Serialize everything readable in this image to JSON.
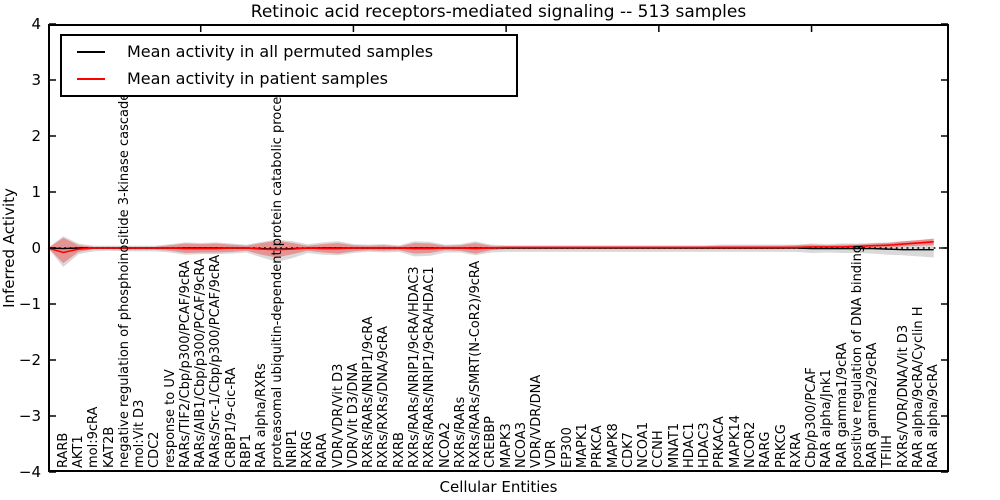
{
  "figure": {
    "title": "Retinoic acid receptors-mediated signaling -- 513 samples",
    "xlabel": "Cellular Entities",
    "ylabel": "Inferred Activity"
  },
  "legend": {
    "entries": [
      {
        "label": "Mean activity in all permuted samples",
        "color": "#000000"
      },
      {
        "label": "Mean activity in patient samples",
        "color": "#ff0000"
      }
    ]
  },
  "chart_data": {
    "type": "line",
    "title": "Retinoic acid receptors-mediated signaling -- 513 samples",
    "xlabel": "Cellular Entities",
    "ylabel": "Inferred Activity",
    "ylim": [
      -4,
      4
    ],
    "yticks": [
      -4,
      -3,
      -2,
      -1,
      0,
      1,
      2,
      3,
      4
    ],
    "xlim": [
      0,
      59
    ],
    "top_xticks": [
      10,
      20,
      30,
      40,
      50
    ],
    "grid": false,
    "zero_line": 0,
    "legend_position": "upper left",
    "colors": {
      "permuted_line": "#000000",
      "patient_line": "#ff0000",
      "permuted_band": "rgba(128,128,128,0.30)",
      "patient_band": "rgba(255,0,0,0.32)"
    },
    "categories": [
      "RARB",
      "AKT1",
      "mol:9cRA",
      "KAT2B",
      "negative regulation of phosphoinositide 3-kinase cascade",
      "mol:Vit D3",
      "CDC2",
      "response to UV",
      "RARs/TIF2/Cbp/p300/PCAF/9cRA",
      "RARs/AIB1/Cbp/p300/PCAF/9cRA",
      "RARs/Src-1/Cbp/p300/PCAF/9cRA",
      "CRBP1/9-cic-RA",
      "RBP1",
      "RAR alpha/RXRs",
      "proteasomal ubiquitin-dependent protein catabolic process",
      "NRIP1",
      "RXRG",
      "RARA",
      "VDR/VDR/Vit D3",
      "VDR/Vit D3/DNA",
      "RXRs/RARs/NRIP1/9cRA",
      "RXRs/RXRs/DNA/9cRA",
      "RXRB",
      "RXRs/RARs/NRIP1/9cRA/HDAC3",
      "RXRs/RARs/NRIP1/9cRA/HDAC1",
      "NCOA2",
      "RXRs/RARs",
      "RXRs/RARs/SMRT(N-CoR2)/9cRA",
      "CREBBP",
      "MAPK3",
      "NCOA3",
      "VDR/VDR/DNA",
      "VDR",
      "EP300",
      "MAPK1",
      "PRKCA",
      "MAPK8",
      "CDK7",
      "NCOA1",
      "CCNH",
      "MNAT1",
      "HDAC1",
      "HDAC3",
      "PRKACA",
      "MAPK14",
      "NCOR2",
      "RARG",
      "PRKCG",
      "RXRA",
      "Cbp/p300/PCAF",
      "RAR alpha/Jnk1",
      "RAR gamma1/9cRA",
      "positive regulation of DNA binding",
      "RAR gamma2/9cRA",
      "TFIIH",
      "RXRs/VDR/DNA/Vit D3",
      "RAR alpha/9cRA/Cyclin H",
      "RAR alpha/9cRA"
    ],
    "series": [
      {
        "name": "Mean activity in all permuted samples",
        "color": "#000000",
        "values": [
          -0.01,
          0,
          0,
          0,
          0,
          0,
          0,
          0,
          0,
          0,
          0,
          0,
          0,
          -0.01,
          -0.02,
          -0.01,
          0,
          0,
          0,
          0,
          0,
          0,
          0,
          0,
          0,
          0,
          0,
          0,
          0,
          0,
          0,
          0,
          0,
          0,
          0,
          0,
          0,
          0,
          0,
          0,
          0,
          0,
          0,
          0,
          0,
          0,
          0,
          0,
          0,
          -0.01,
          -0.01,
          -0.01,
          -0.01,
          -0.01,
          -0.02,
          -0.03,
          -0.03,
          -0.03
        ]
      },
      {
        "name": "Mean activity in patient samples",
        "color": "#ff0000",
        "values": [
          -0.08,
          -0.02,
          0,
          0,
          0,
          0,
          0,
          0,
          -0.01,
          -0.01,
          -0.01,
          0,
          0,
          -0.02,
          -0.03,
          -0.02,
          0,
          -0.01,
          -0.01,
          0,
          0,
          0,
          0,
          -0.01,
          -0.01,
          0,
          0,
          -0.01,
          0,
          0.01,
          0.01,
          0.01,
          0.01,
          0.01,
          0.01,
          0.01,
          0.01,
          0.01,
          0.01,
          0.01,
          0.01,
          0.01,
          0.01,
          0.01,
          0.01,
          0.01,
          0.01,
          0.01,
          0.01,
          0.02,
          0.02,
          0.02,
          0.03,
          0.04,
          0.05,
          0.07,
          0.09,
          0.11
        ]
      }
    ],
    "bands": [
      {
        "name": "permuted-activity-range",
        "color": "rgba(128,128,128,0.30)",
        "upper": [
          0.21,
          0.08,
          0.04,
          0.04,
          0.04,
          0.04,
          0.04,
          0.07,
          0.1,
          0.09,
          0.1,
          0.08,
          0.06,
          0.11,
          0.15,
          0.12,
          0.07,
          0.1,
          0.12,
          0.07,
          0.06,
          0.07,
          0.05,
          0.12,
          0.11,
          0.06,
          0.07,
          0.12,
          0.06,
          0.05,
          0.05,
          0.05,
          0.05,
          0.05,
          0.05,
          0.05,
          0.05,
          0.05,
          0.05,
          0.05,
          0.05,
          0.05,
          0.05,
          0.06,
          0.06,
          0.06,
          0.06,
          0.06,
          0.06,
          0.08,
          0.07,
          0.08,
          0.08,
          0.09,
          0.1,
          0.12,
          0.14,
          0.16
        ],
        "lower": [
          -0.34,
          -0.11,
          -0.06,
          -0.05,
          -0.06,
          -0.06,
          -0.06,
          -0.08,
          -0.12,
          -0.11,
          -0.11,
          -0.1,
          -0.08,
          -0.17,
          -0.25,
          -0.18,
          -0.09,
          -0.12,
          -0.13,
          -0.09,
          -0.07,
          -0.08,
          -0.07,
          -0.15,
          -0.14,
          -0.08,
          -0.08,
          -0.13,
          -0.08,
          -0.07,
          -0.07,
          -0.07,
          -0.07,
          -0.07,
          -0.07,
          -0.07,
          -0.07,
          -0.07,
          -0.07,
          -0.07,
          -0.07,
          -0.07,
          -0.07,
          -0.07,
          -0.07,
          -0.07,
          -0.07,
          -0.07,
          -0.07,
          -0.09,
          -0.08,
          -0.09,
          -0.09,
          -0.1,
          -0.12,
          -0.13,
          -0.15,
          -0.17
        ]
      },
      {
        "name": "patient-activity-range",
        "color": "rgba(255,0,0,0.32)",
        "upper": [
          0.18,
          0.05,
          0.02,
          0.02,
          0.02,
          0.02,
          0.02,
          0.05,
          0.08,
          0.07,
          0.08,
          0.06,
          0.04,
          0.09,
          0.13,
          0.09,
          0.04,
          0.07,
          0.09,
          0.05,
          0.04,
          0.05,
          0.03,
          0.09,
          0.08,
          0.04,
          0.05,
          0.09,
          0.04,
          0.03,
          0.03,
          0.03,
          0.03,
          0.03,
          0.03,
          0.03,
          0.03,
          0.03,
          0.03,
          0.03,
          0.03,
          0.03,
          0.03,
          0.04,
          0.04,
          0.04,
          0.04,
          0.04,
          0.05,
          0.06,
          0.05,
          0.06,
          0.06,
          0.08,
          0.09,
          0.12,
          0.14,
          0.17
        ],
        "lower": [
          -0.27,
          -0.07,
          -0.02,
          -0.02,
          -0.03,
          -0.03,
          -0.03,
          -0.05,
          -0.09,
          -0.08,
          -0.08,
          -0.07,
          -0.05,
          -0.12,
          -0.17,
          -0.11,
          -0.05,
          -0.08,
          -0.1,
          -0.06,
          -0.04,
          -0.05,
          -0.04,
          -0.1,
          -0.09,
          -0.04,
          -0.05,
          -0.1,
          -0.04,
          -0.02,
          -0.02,
          -0.02,
          -0.02,
          -0.02,
          -0.02,
          -0.02,
          -0.02,
          -0.02,
          -0.02,
          -0.02,
          -0.02,
          -0.02,
          -0.02,
          -0.02,
          -0.02,
          -0.02,
          -0.02,
          -0.02,
          -0.01,
          -0.02,
          -0.01,
          -0.01,
          -0.01,
          0.0,
          0.01,
          0.03,
          0.04,
          0.05
        ]
      }
    ]
  }
}
